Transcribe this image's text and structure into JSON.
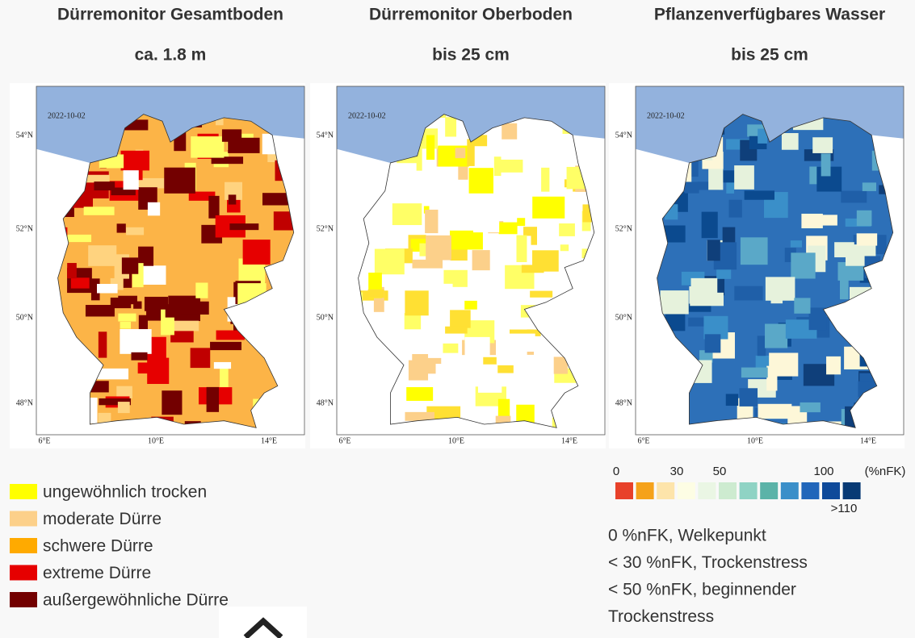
{
  "panels": [
    {
      "title": "Dürremonitor Gesamtboden",
      "subtitle": "ca. 1.8 m",
      "date": "2022-10-02",
      "lat_labels": [
        "54°N",
        "52°N",
        "50°N",
        "48°N"
      ],
      "lon_labels": [
        "6°E",
        "10°E",
        "14°E"
      ]
    },
    {
      "title": "Dürremonitor Oberboden",
      "subtitle": "bis 25 cm",
      "date": "2022-10-02",
      "lat_labels": [
        "54°N",
        "52°N",
        "50°N",
        "48°N"
      ],
      "lon_labels": [
        "6°E",
        "10°E",
        "14°E"
      ]
    },
    {
      "title": "Pflanzenverfügbares Wasser",
      "subtitle": "bis 25 cm",
      "date": "2022-10-02",
      "lat_labels": [
        "54°N",
        "52°N",
        "50°N",
        "48°N"
      ],
      "lon_labels": [
        "6°E",
        "10°E",
        "14°E"
      ]
    }
  ],
  "drought_legend": [
    {
      "label": "ungewöhnlich trocken",
      "color": "#ffff00"
    },
    {
      "label": "moderate Dürre",
      "color": "#fcd08a"
    },
    {
      "label": "schwere Dürre",
      "color": "#ffaa00"
    },
    {
      "label": "extreme Dürre",
      "color": "#e60000"
    },
    {
      "label": "außergewöhnliche Dürre",
      "color": "#730000"
    }
  ],
  "water_scale": {
    "labels": [
      "0",
      "30",
      "50",
      "100",
      "(%nFK)",
      ">110"
    ],
    "colors": [
      "#e8412a",
      "#f5a21a",
      "#fde4aa",
      "#fdfde4",
      "#eaf6e4",
      "#cdebd0",
      "#8fd3c4",
      "#5bb3a8",
      "#3a8fc9",
      "#2166ba",
      "#0f4a9a",
      "#083a75"
    ]
  },
  "notes": [
    "0 %nFK, Welkepunkt",
    "< 30 %nFK, Trockenstress",
    "< 50 %nFK, beginnender",
    "Trockenstress"
  ]
}
